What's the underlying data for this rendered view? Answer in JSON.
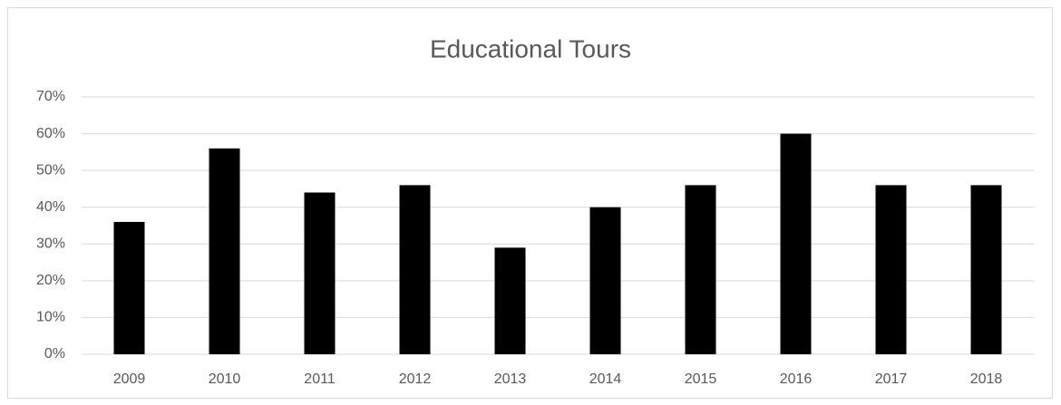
{
  "chart_data": {
    "type": "bar",
    "title": "Educational Tours",
    "categories": [
      "2009",
      "2010",
      "2011",
      "2012",
      "2013",
      "2014",
      "2015",
      "2016",
      "2017",
      "2018"
    ],
    "values": [
      36,
      56,
      44,
      46,
      29,
      40,
      46,
      60,
      46,
      46
    ],
    "color": "#000000",
    "ylim": [
      0,
      70
    ],
    "yticks": [
      {
        "value": 0,
        "label": "0%"
      },
      {
        "value": 10,
        "label": "10%"
      },
      {
        "value": 20,
        "label": "20%"
      },
      {
        "value": 30,
        "label": "30%"
      },
      {
        "value": 40,
        "label": "40%"
      },
      {
        "value": 50,
        "label": "50%"
      },
      {
        "value": 60,
        "label": "60%"
      },
      {
        "value": 70,
        "label": "70%"
      }
    ],
    "grid": true
  }
}
